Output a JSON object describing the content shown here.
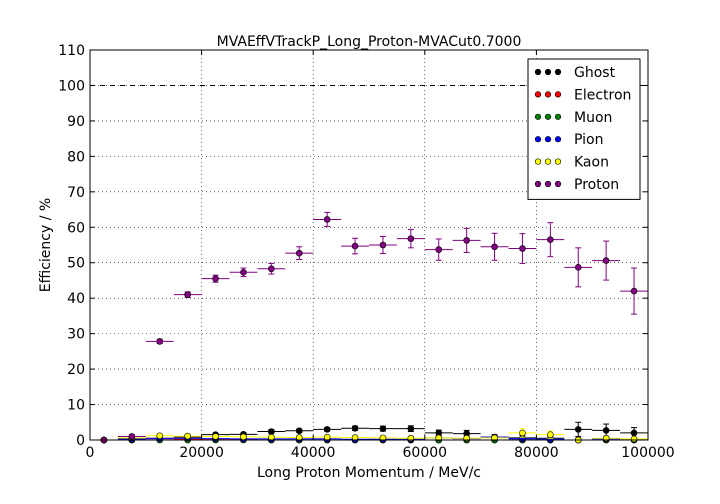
{
  "chart_data": {
    "type": "scatter",
    "title": "MVAEffVTrackP_Long_Proton-MVACut0.7000",
    "xlabel": "Long Proton Momentum / MeV/c",
    "ylabel": "Efficiency / %",
    "xlim": [
      0,
      100000
    ],
    "ylim": [
      0,
      110
    ],
    "x_ticks": [
      "0",
      "20000",
      "40000",
      "60000",
      "80000",
      "100000"
    ],
    "y_ticks": [
      "0",
      "10",
      "20",
      "30",
      "40",
      "50",
      "60",
      "70",
      "80",
      "90",
      "100",
      "110"
    ],
    "grid": true,
    "legend_position": "top-right",
    "reference_line": 100,
    "bin_half_width": 2500,
    "x": [
      2500,
      7500,
      12500,
      17500,
      22500,
      27500,
      32500,
      37500,
      42500,
      47500,
      52500,
      57500,
      62500,
      67500,
      72500,
      77500,
      82500,
      87500,
      92500,
      97500
    ],
    "series": [
      {
        "name": "Ghost",
        "color": "#000000",
        "values": [
          0,
          0.3,
          0.5,
          0.8,
          1.5,
          1.6,
          2.4,
          2.6,
          3.0,
          3.3,
          3.2,
          3.2,
          2.0,
          1.8,
          0.8,
          0.6,
          0.5,
          3.0,
          2.7,
          2.0
        ],
        "errors": [
          0,
          0.2,
          0.3,
          0.3,
          0.4,
          0.4,
          0.5,
          0.5,
          0.5,
          0.6,
          0.7,
          0.8,
          0.8,
          0.9,
          0.7,
          0.8,
          0.8,
          2.0,
          1.8,
          1.5
        ]
      },
      {
        "name": "Electron",
        "color": "#ff0000",
        "values": [
          0,
          0,
          0.4,
          0.2,
          0.1,
          0.1,
          0,
          0,
          0,
          0,
          0,
          0,
          0,
          0,
          0,
          0,
          0,
          0,
          0,
          0
        ],
        "errors": [
          0,
          0,
          0.3,
          0.2,
          0.1,
          0.1,
          0,
          0,
          0,
          0,
          0,
          0,
          0,
          0,
          0,
          0,
          0,
          0,
          0,
          0
        ]
      },
      {
        "name": "Muon",
        "color": "#008000",
        "values": [
          0,
          0,
          0,
          0,
          0,
          0,
          0,
          0,
          0,
          0,
          0,
          0,
          0,
          0,
          0,
          0,
          0,
          0,
          0,
          0
        ],
        "errors": [
          0,
          0,
          0,
          0,
          0,
          0,
          0,
          0,
          0,
          0,
          0,
          0,
          0,
          0,
          0,
          0,
          0,
          0,
          0,
          0
        ]
      },
      {
        "name": "Pion",
        "color": "#0000ff",
        "values": [
          0,
          0.2,
          0.4,
          0.5,
          0.4,
          0.3,
          0.3,
          0.3,
          0.3,
          0.2,
          0.2,
          0.2,
          0.6,
          0.4,
          0.8,
          0.3,
          0.2,
          0,
          0.3,
          0.2
        ],
        "errors": [
          0,
          0.2,
          0.2,
          0.3,
          0.2,
          0.2,
          0.2,
          0.2,
          0.2,
          0.2,
          0.2,
          0.2,
          0.5,
          0.4,
          0.6,
          0.3,
          0.2,
          0,
          0.3,
          0.2
        ]
      },
      {
        "name": "Kaon",
        "color": "#ffff00",
        "values": [
          0,
          0.6,
          1.2,
          1.1,
          1.0,
          0.9,
          0.8,
          0.7,
          0.8,
          0.7,
          0.6,
          0.5,
          0.6,
          0.5,
          0.6,
          2.0,
          1.5,
          0,
          0.5,
          0.3
        ],
        "errors": [
          0,
          0.3,
          0.4,
          0.4,
          0.3,
          0.3,
          0.3,
          0.3,
          0.3,
          0.3,
          0.3,
          0.3,
          0.4,
          0.4,
          0.5,
          1.2,
          1.0,
          0,
          0.5,
          0.3
        ]
      },
      {
        "name": "Proton",
        "color": "#800080",
        "values": [
          0,
          1.0,
          27.8,
          41.0,
          45.5,
          47.3,
          48.3,
          52.7,
          62.2,
          54.7,
          55.0,
          56.8,
          53.7,
          56.3,
          54.5,
          54.0,
          56.5,
          48.7,
          50.6,
          42.0
        ],
        "errors": [
          0,
          0.5,
          0.6,
          0.8,
          1.0,
          1.2,
          1.5,
          1.8,
          2.0,
          2.2,
          2.4,
          2.6,
          3.0,
          3.4,
          3.8,
          4.2,
          4.8,
          5.5,
          5.5,
          6.5
        ]
      }
    ]
  }
}
